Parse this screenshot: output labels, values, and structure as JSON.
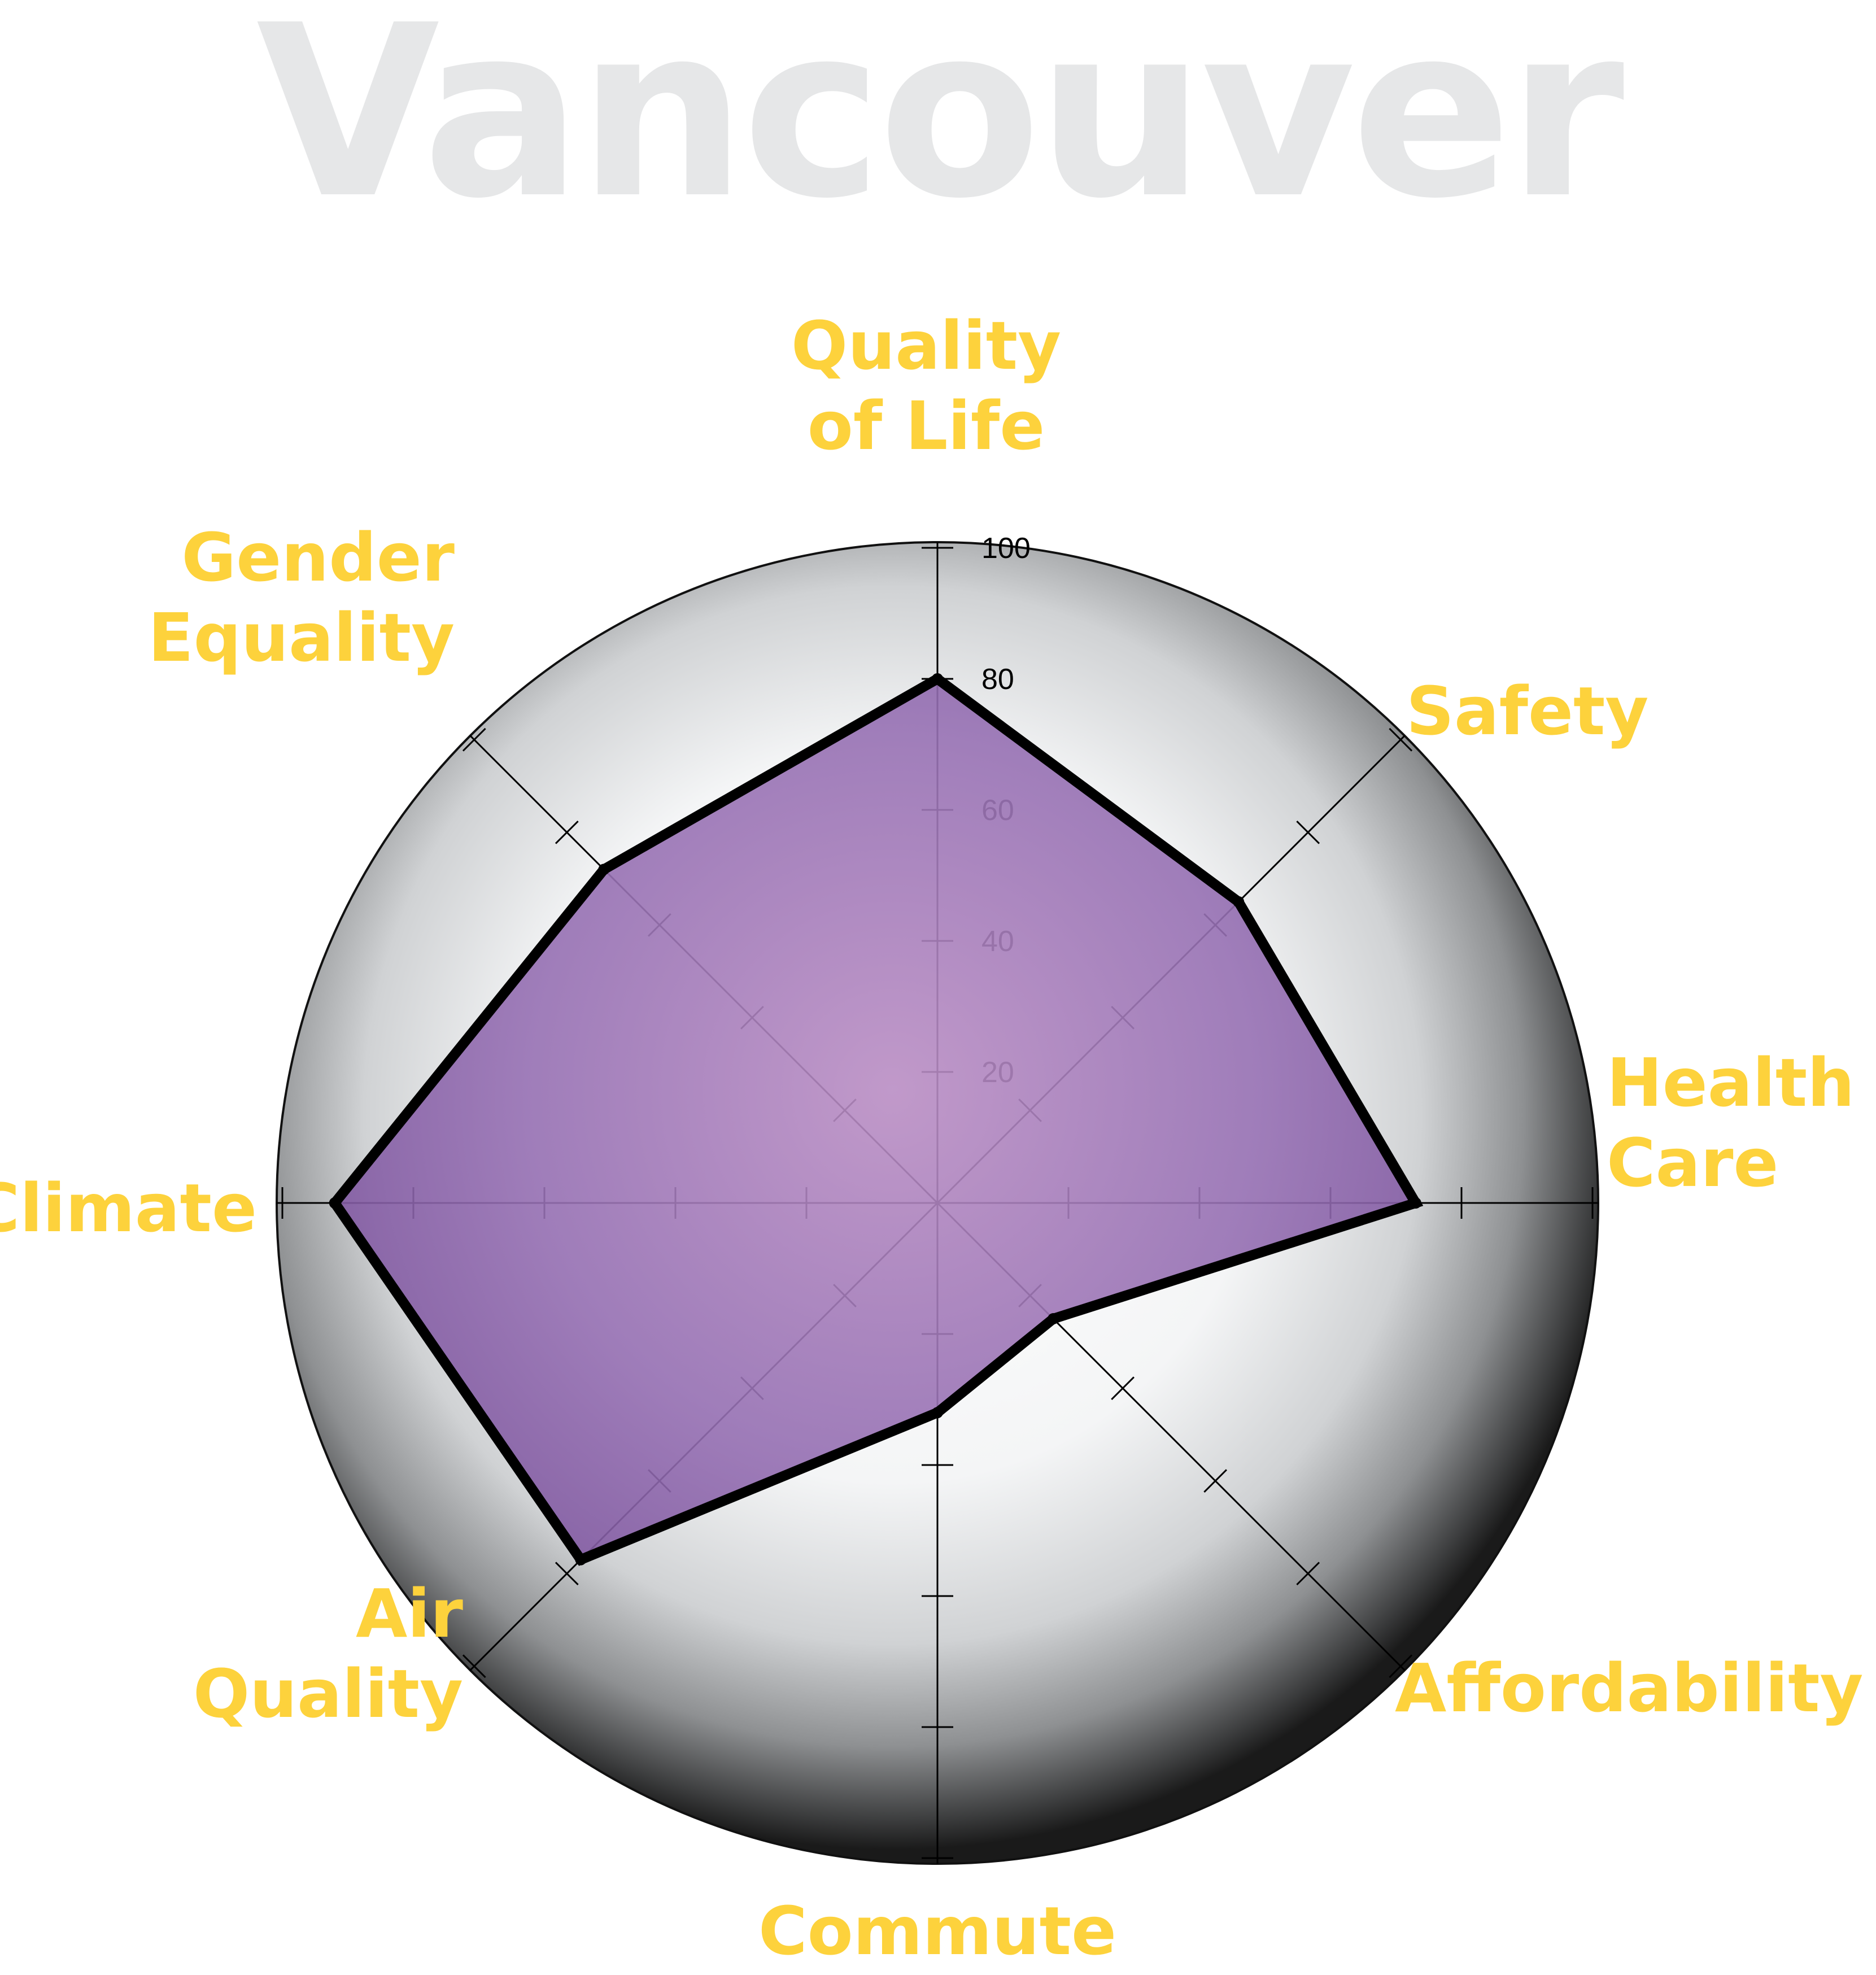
{
  "chart_data": {
    "type": "radar",
    "title": "Vancouver",
    "axes": [
      {
        "label_lines": [
          "Quality",
          "of Life"
        ]
      },
      {
        "label_lines": [
          "Safety"
        ]
      },
      {
        "label_lines": [
          "Health",
          "Care"
        ]
      },
      {
        "label_lines": [
          "Affordability"
        ]
      },
      {
        "label_lines": [
          "Commute"
        ]
      },
      {
        "label_lines": [
          "Air",
          "Quality"
        ]
      },
      {
        "label_lines": [
          "Climate"
        ]
      },
      {
        "label_lines": [
          "Gender",
          "Equality"
        ]
      }
    ],
    "values": [
      80,
      65,
      73,
      25,
      32,
      77,
      92,
      72
    ],
    "rlim": [
      0,
      100
    ],
    "ticks": [
      20,
      40,
      60,
      80,
      100
    ],
    "tick_labels": [
      "20",
      "40",
      "60",
      "80",
      "100"
    ]
  },
  "colors": {
    "title": "#e6e7e8",
    "axis_label": "#fdd23c",
    "fill": "#7e4d9e",
    "outline": "#000000",
    "axis_line": "#000000"
  }
}
